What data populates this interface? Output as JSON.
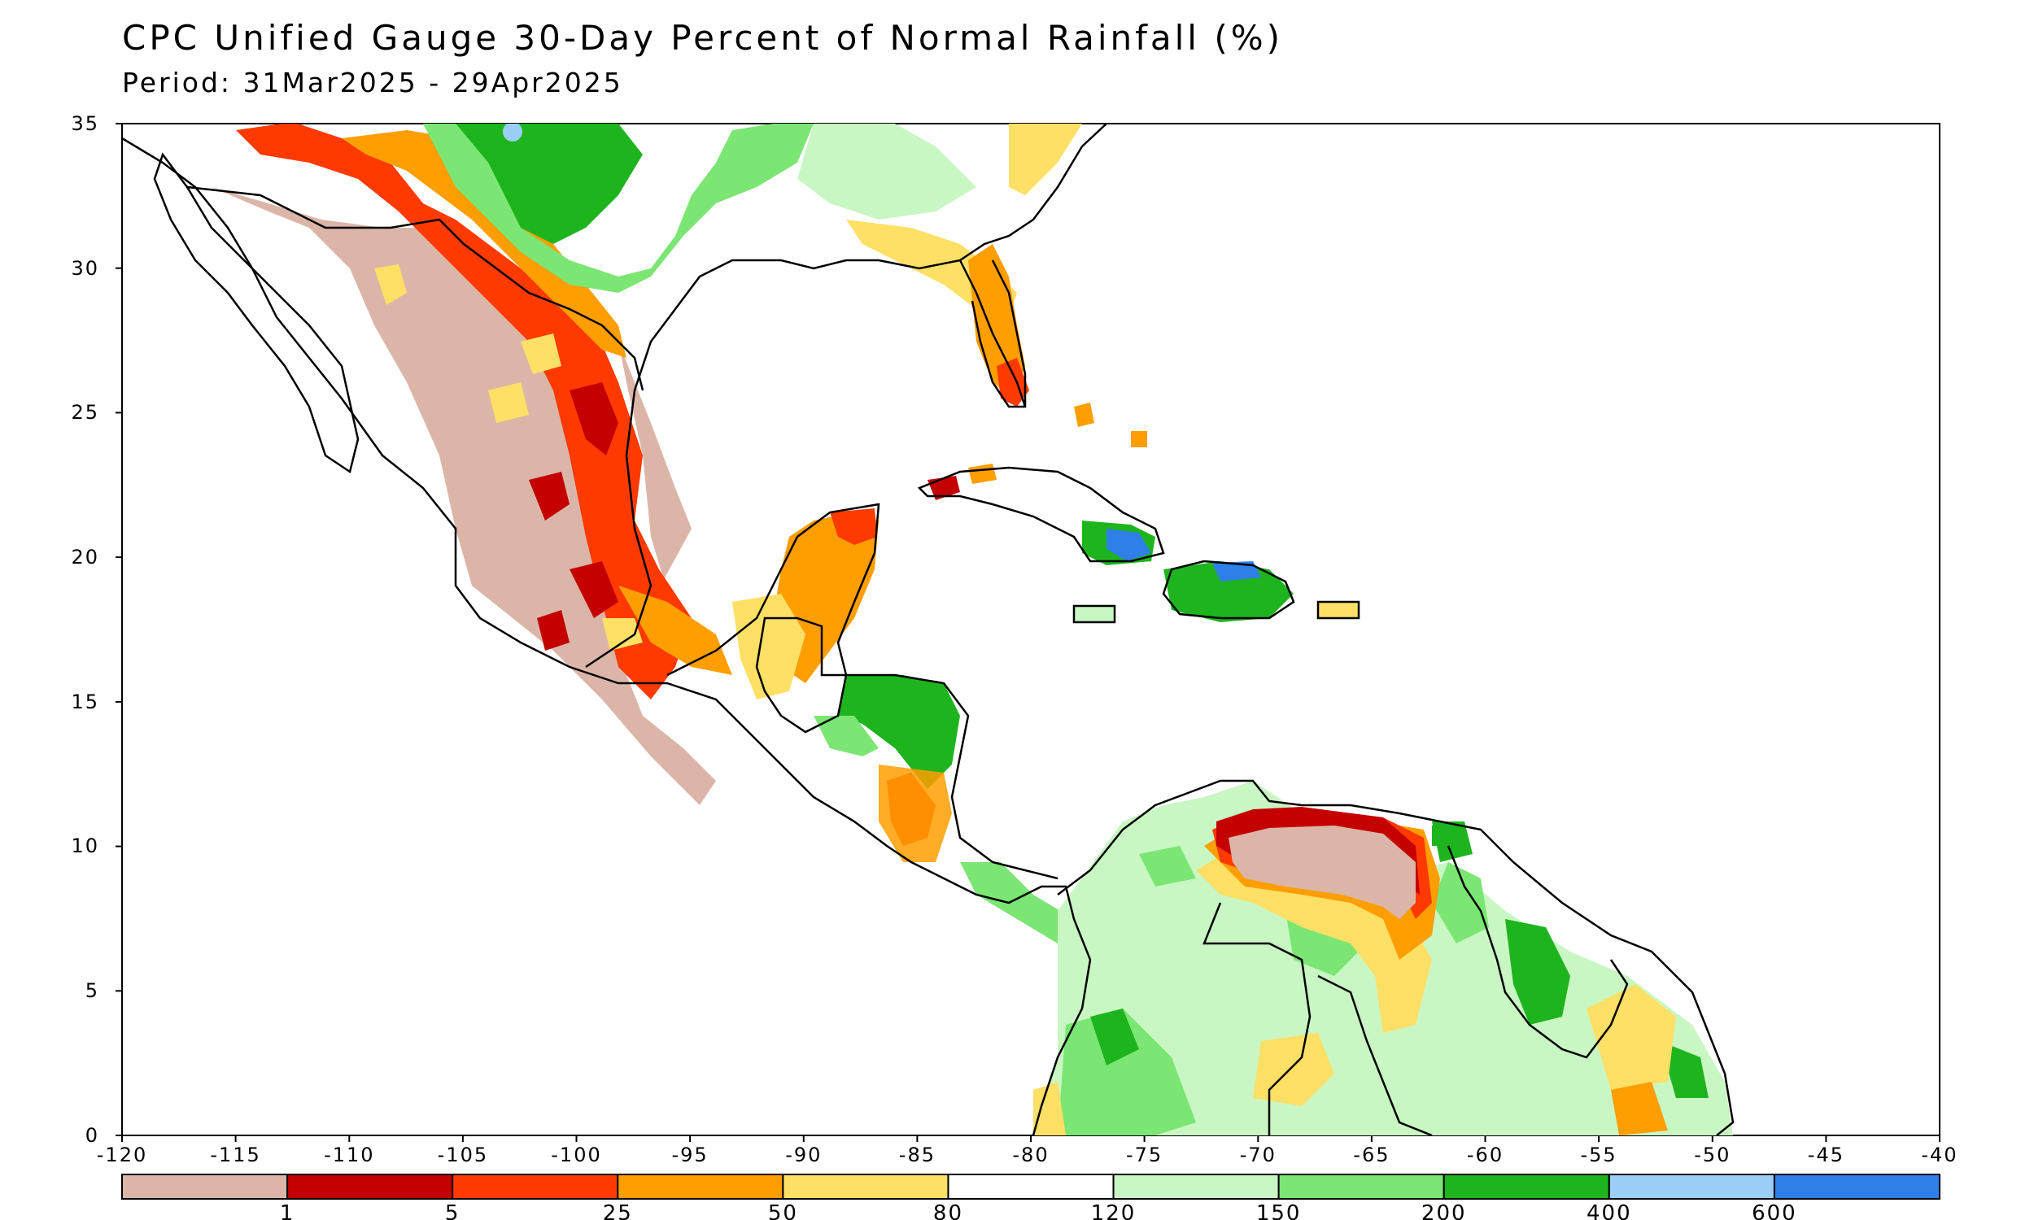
{
  "title": "CPC Unified Gauge 30-Day Percent of Normal Rainfall (%)",
  "period": "Period: 31Mar2025 - 29Apr2025",
  "map": {
    "lon_range": [
      -120,
      -40
    ],
    "lat_range": [
      0,
      35
    ],
    "lon_ticks": [
      "-120",
      "-115",
      "-110",
      "-105",
      "-100",
      "-95",
      "-90",
      "-85",
      "-80",
      "-75",
      "-70",
      "-65",
      "-60",
      "-55",
      "-50",
      "-45",
      "-40"
    ],
    "lat_ticks": [
      "0",
      "5",
      "10",
      "15",
      "20",
      "25",
      "30",
      "35"
    ]
  },
  "colorbar": {
    "colors": [
      "#dbb6a8",
      "#c40000",
      "#ff3a00",
      "#ff9e00",
      "#ffe066",
      "#ffffff",
      "#c9f7c3",
      "#7be673",
      "#1eb41e",
      "#9ccff7",
      "#2f7fe8"
    ],
    "labels": [
      "1",
      "5",
      "25",
      "50",
      "80",
      "120",
      "150",
      "200",
      "400",
      "600"
    ]
  }
}
